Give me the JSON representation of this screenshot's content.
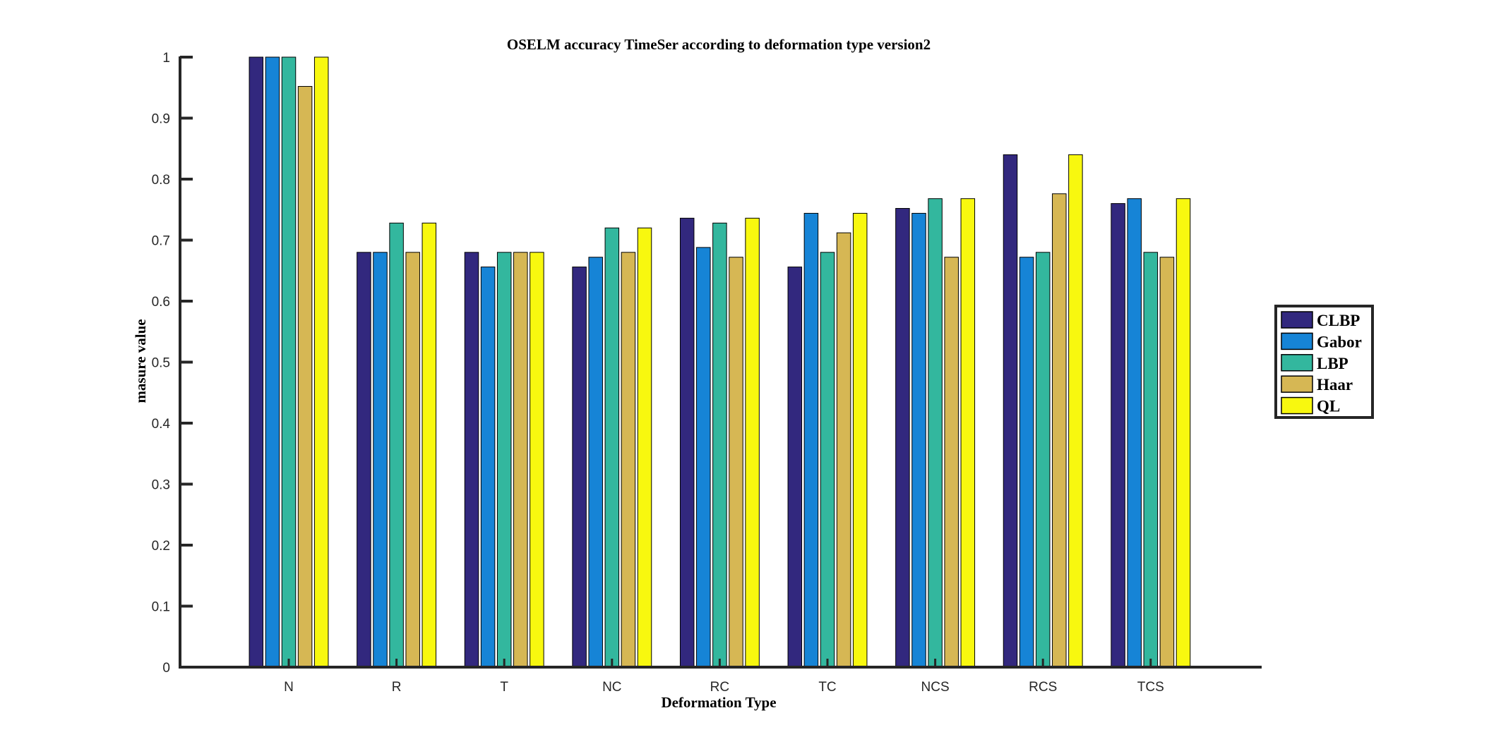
{
  "chart_data": {
    "type": "bar",
    "title": "OSELM accuracy TimeSer according to deformation type version2",
    "xlabel": "Deformation Type",
    "ylabel": "masure value",
    "ylim": [
      0,
      1
    ],
    "yticks": [
      "0",
      "0.1",
      "0.2",
      "0.3",
      "0.4",
      "0.5",
      "0.6",
      "0.7",
      "0.8",
      "0.9",
      "1"
    ],
    "categories": [
      "N",
      "R",
      "T",
      "NC",
      "RC",
      "TC",
      "NCS",
      "RCS",
      "TCS"
    ],
    "series": [
      {
        "name": "CLBP",
        "color": "#32287e",
        "values": [
          1.0,
          0.68,
          0.68,
          0.656,
          0.736,
          0.656,
          0.752,
          0.84,
          0.76
        ]
      },
      {
        "name": "Gabor",
        "color": "#1684d6",
        "values": [
          1.0,
          0.68,
          0.656,
          0.672,
          0.688,
          0.744,
          0.744,
          0.672,
          0.768
        ]
      },
      {
        "name": "LBP",
        "color": "#33b79e",
        "values": [
          1.0,
          0.728,
          0.68,
          0.72,
          0.728,
          0.68,
          0.768,
          0.68,
          0.68
        ]
      },
      {
        "name": "Haar",
        "color": "#d6b754",
        "values": [
          0.952,
          0.68,
          0.68,
          0.68,
          0.672,
          0.712,
          0.672,
          0.776,
          0.672
        ]
      },
      {
        "name": "QL",
        "color": "#f8f80f",
        "values": [
          1.0,
          0.728,
          0.68,
          0.72,
          0.736,
          0.744,
          0.768,
          0.84,
          0.768
        ]
      }
    ],
    "grid": false,
    "legend_position": "right"
  }
}
